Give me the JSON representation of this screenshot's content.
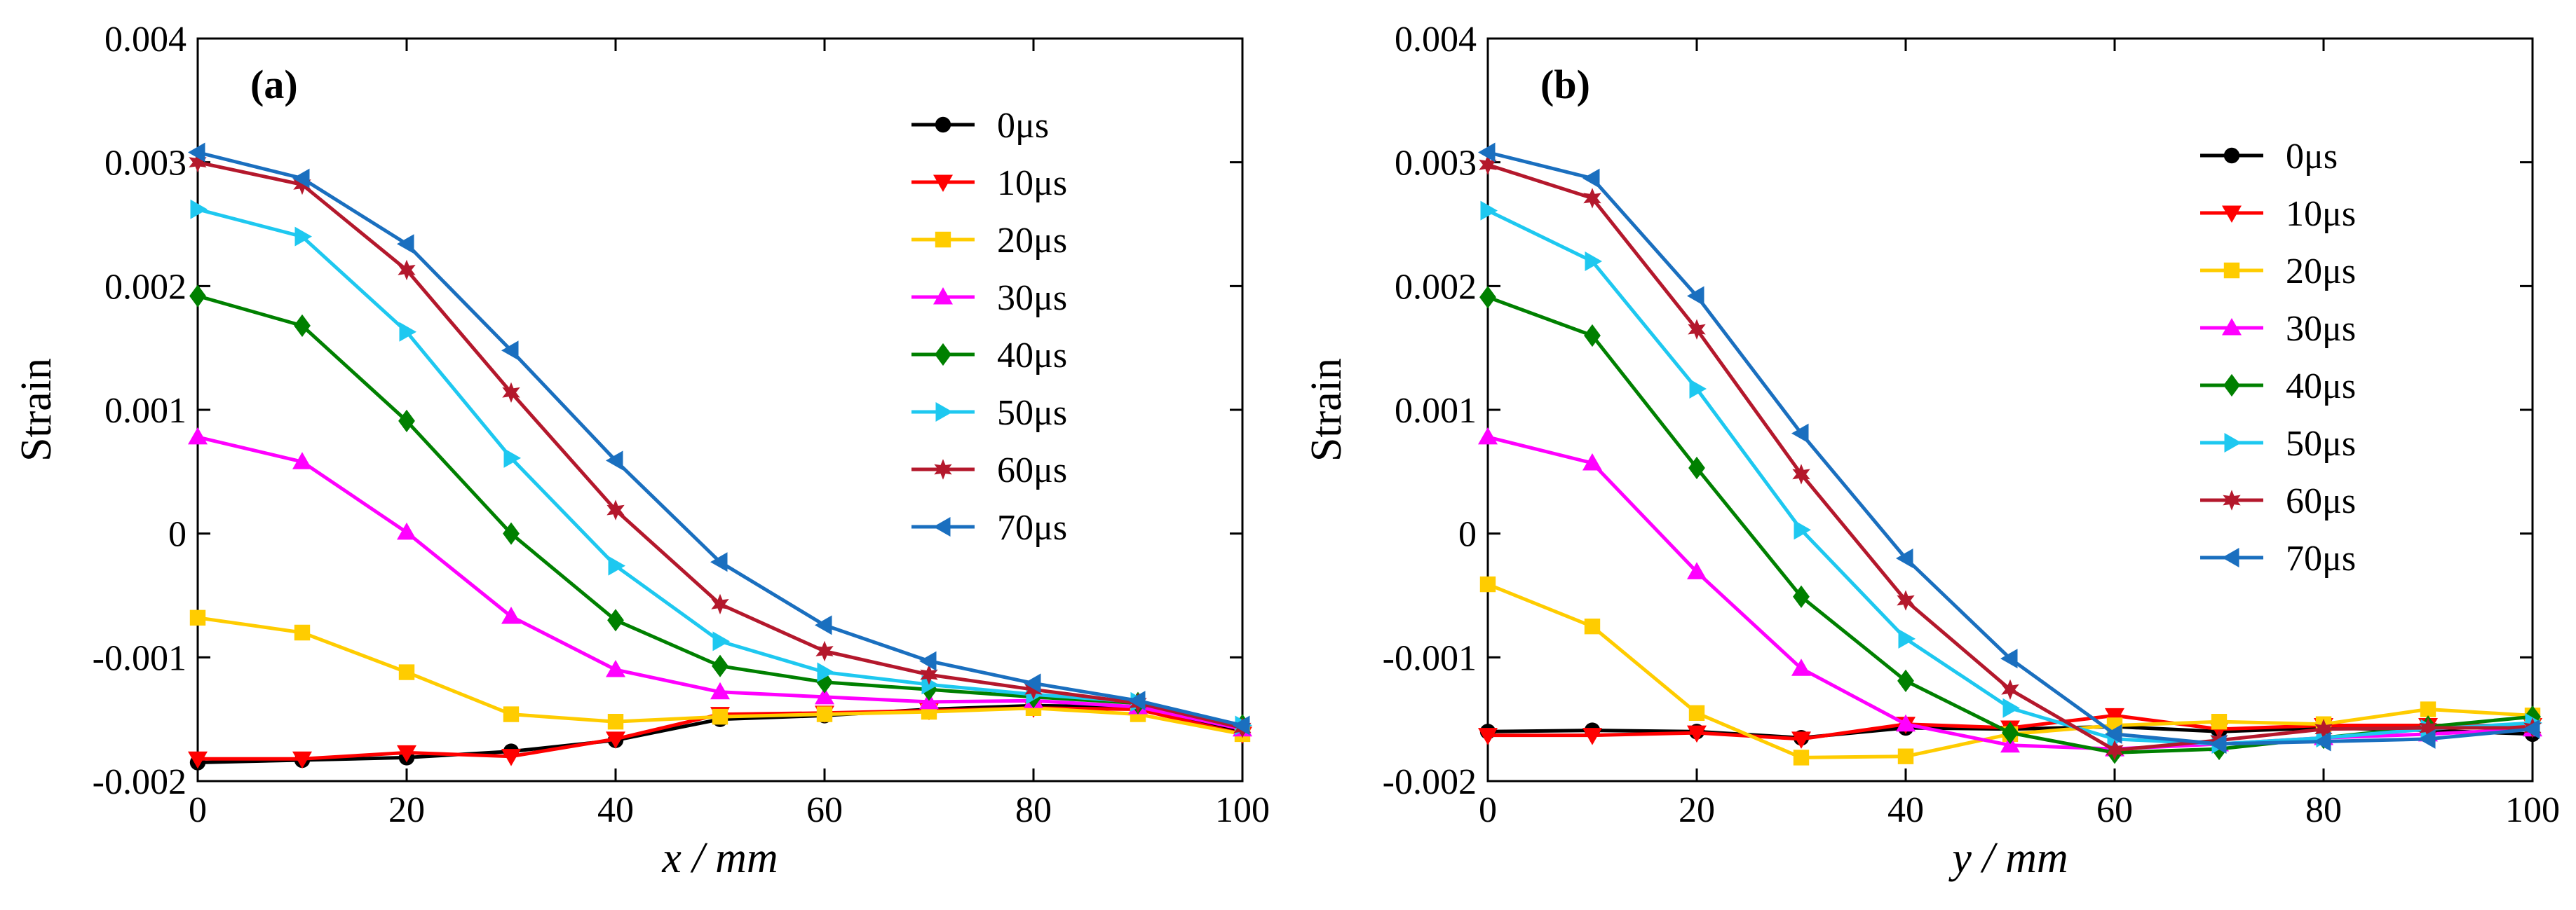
{
  "chart_data": [
    {
      "type": "line",
      "panel_label": "(a)",
      "xlabel_var": "x",
      "xlabel_unit": " / mm",
      "ylabel": "Strain",
      "xlim": [
        0,
        100
      ],
      "ylim": [
        -0.002,
        0.004
      ],
      "xticks": [
        0,
        20,
        40,
        60,
        80,
        100
      ],
      "xtick_labels": [
        "0",
        "20",
        "40",
        "60",
        "80",
        "100"
      ],
      "yticks": [
        -0.002,
        -0.001,
        0,
        0.001,
        0.002,
        0.003,
        0.004
      ],
      "ytick_labels": [
        "-0.002",
        "-0.001",
        "0",
        "0.001",
        "0.002",
        "0.003",
        "0.004"
      ],
      "legend_position": "top-right",
      "x": [
        0,
        10,
        20,
        30,
        40,
        50,
        60,
        70,
        80,
        90,
        100
      ],
      "series": [
        {
          "name": "0μs",
          "color": "#000000",
          "marker": "circle",
          "values": [
            -0.00185,
            -0.00183,
            -0.00181,
            -0.00176,
            -0.00167,
            -0.0015,
            -0.00147,
            -0.00142,
            -0.00139,
            -0.0014,
            -0.0016
          ]
        },
        {
          "name": "10μs",
          "color": "#ff0000",
          "marker": "triangle-down",
          "values": [
            -0.00182,
            -0.00182,
            -0.00177,
            -0.0018,
            -0.00166,
            -0.00146,
            -0.00145,
            -0.00143,
            -0.00141,
            -0.00142,
            -0.00162
          ]
        },
        {
          "name": "20μs",
          "color": "#ffcc00",
          "marker": "square",
          "values": [
            -0.00068,
            -0.0008,
            -0.00112,
            -0.00146,
            -0.00152,
            -0.00148,
            -0.00146,
            -0.00144,
            -0.00141,
            -0.00146,
            -0.00162
          ]
        },
        {
          "name": "30μs",
          "color": "#ff00ff",
          "marker": "triangle-up",
          "values": [
            0.00078,
            0.00058,
            1e-05,
            -0.00067,
            -0.0011,
            -0.00128,
            -0.00132,
            -0.00136,
            -0.00135,
            -0.0014,
            -0.00158
          ]
        },
        {
          "name": "40μs",
          "color": "#008000",
          "marker": "diamond",
          "values": [
            0.00192,
            0.00168,
            0.00091,
            0.0,
            -0.0007,
            -0.00107,
            -0.0012,
            -0.00126,
            -0.00132,
            -0.00137,
            -0.00155
          ]
        },
        {
          "name": "50μs",
          "color": "#1ec8f0",
          "marker": "triangle-right",
          "values": [
            0.00262,
            0.0024,
            0.00163,
            0.00061,
            -0.00026,
            -0.00087,
            -0.00112,
            -0.00122,
            -0.0013,
            -0.00136,
            -0.00155
          ]
        },
        {
          "name": "60μs",
          "color": "#b4182c",
          "marker": "star",
          "values": [
            0.003,
            0.00282,
            0.00213,
            0.00114,
            0.00019,
            -0.00057,
            -0.00095,
            -0.00114,
            -0.00126,
            -0.00137,
            -0.00157
          ]
        },
        {
          "name": "70μs",
          "color": "#1a6fbf",
          "marker": "triangle-left",
          "values": [
            0.00308,
            0.00287,
            0.00234,
            0.00148,
            0.00059,
            -0.00023,
            -0.00074,
            -0.00103,
            -0.00121,
            -0.00135,
            -0.00155
          ]
        }
      ]
    },
    {
      "type": "line",
      "panel_label": "(b)",
      "xlabel_var": "y",
      "xlabel_unit": " / mm",
      "ylabel": "Strain",
      "xlim": [
        0,
        100
      ],
      "ylim": [
        -0.002,
        0.004
      ],
      "xticks": [
        0,
        20,
        40,
        60,
        80,
        100
      ],
      "xtick_labels": [
        "0",
        "20",
        "40",
        "60",
        "80",
        "100"
      ],
      "yticks": [
        -0.002,
        -0.001,
        0,
        0.001,
        0.002,
        0.003,
        0.004
      ],
      "ytick_labels": [
        "-0.002",
        "-0.001",
        "0",
        "0.001",
        "0.002",
        "0.003",
        "0.004"
      ],
      "legend_position": "top-right",
      "x": [
        0,
        10,
        20,
        30,
        40,
        50,
        60,
        70,
        80,
        90,
        100
      ],
      "series": [
        {
          "name": "0μs",
          "color": "#000000",
          "marker": "circle",
          "values": [
            -0.0016,
            -0.00159,
            -0.0016,
            -0.00165,
            -0.00157,
            -0.00158,
            -0.00156,
            -0.0016,
            -0.00157,
            -0.00159,
            -0.00162
          ]
        },
        {
          "name": "10μs",
          "color": "#ff0000",
          "marker": "triangle-down",
          "values": [
            -0.00163,
            -0.00163,
            -0.00161,
            -0.00166,
            -0.00154,
            -0.00157,
            -0.00147,
            -0.00158,
            -0.00155,
            -0.00155,
            -0.00155
          ]
        },
        {
          "name": "20μs",
          "color": "#ffcc00",
          "marker": "square",
          "values": [
            -0.00041,
            -0.00075,
            -0.00145,
            -0.00181,
            -0.0018,
            -0.00162,
            -0.00155,
            -0.00152,
            -0.00154,
            -0.00142,
            -0.00147
          ]
        },
        {
          "name": "30μs",
          "color": "#ff00ff",
          "marker": "triangle-up",
          "values": [
            0.00078,
            0.00057,
            -0.00031,
            -0.00109,
            -0.00154,
            -0.00171,
            -0.00174,
            -0.0017,
            -0.00165,
            -0.00162,
            -0.00158
          ]
        },
        {
          "name": "40μs",
          "color": "#008000",
          "marker": "diamond",
          "values": [
            0.00191,
            0.0016,
            0.00053,
            -0.00051,
            -0.00119,
            -0.00161,
            -0.00177,
            -0.00174,
            -0.00165,
            -0.00156,
            -0.00148
          ]
        },
        {
          "name": "50μs",
          "color": "#1ec8f0",
          "marker": "triangle-right",
          "values": [
            0.00261,
            0.0022,
            0.00117,
            3e-05,
            -0.00085,
            -0.00141,
            -0.00166,
            -0.0017,
            -0.00165,
            -0.00158,
            -0.00153
          ]
        },
        {
          "name": "60μs",
          "color": "#b4182c",
          "marker": "star",
          "values": [
            0.00298,
            0.00271,
            0.00165,
            0.00048,
            -0.00054,
            -0.00126,
            -0.00175,
            -0.00167,
            -0.00158,
            -0.00157,
            -0.00157
          ]
        },
        {
          "name": "70μs",
          "color": "#1a6fbf",
          "marker": "triangle-left",
          "values": [
            0.00308,
            0.00287,
            0.00192,
            0.00081,
            -0.0002,
            -0.00101,
            -0.00162,
            -0.0017,
            -0.00168,
            -0.00166,
            -0.00158
          ]
        }
      ]
    }
  ]
}
